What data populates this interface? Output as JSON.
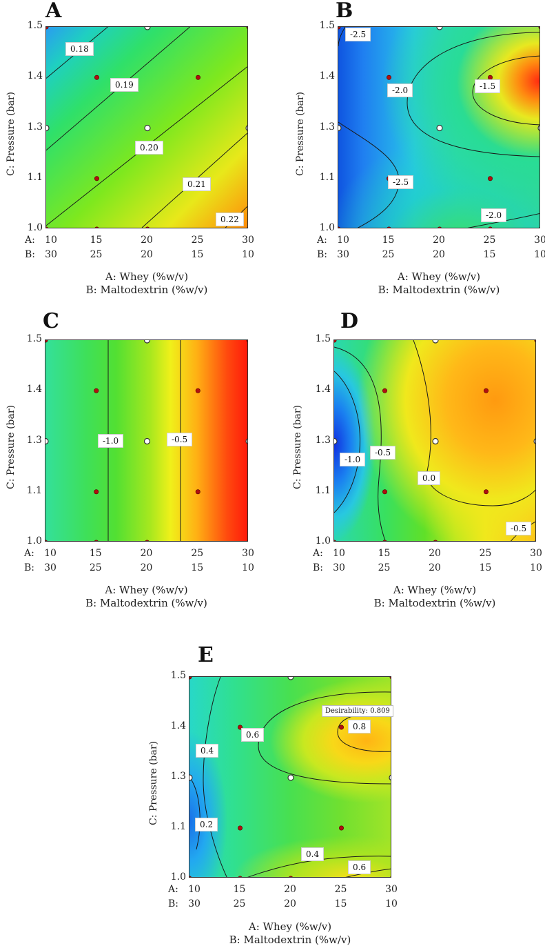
{
  "figure": {
    "axis_labels": {
      "y": "C: Pressure (bar)",
      "x1": "A: Whey (%w/v)",
      "x2": "B: Maltodextrin (%w/v)",
      "row_a_prefix": "A:",
      "row_b_prefix": "B:"
    },
    "y_ticks": [
      "1.5",
      "1.4",
      "1.3",
      "1.1",
      "1.0"
    ],
    "x_ticks_a": [
      "10",
      "15",
      "20",
      "25",
      "30"
    ],
    "x_ticks_b": [
      "30",
      "25",
      "20",
      "15",
      "10"
    ]
  },
  "chart_data": [
    {
      "panel": "A",
      "type": "heatmap",
      "x_a": [
        10,
        15,
        20,
        25,
        30
      ],
      "x_b": [
        30,
        25,
        20,
        15,
        10
      ],
      "ylim": [
        1.0,
        1.5
      ],
      "contour_levels": [
        "0.18",
        "0.19",
        "0.20",
        "0.21",
        "0.22"
      ],
      "design_points": [
        {
          "a": 10,
          "c": 1.5,
          "kind": "red"
        },
        {
          "a": 20,
          "c": 1.5,
          "kind": "white"
        },
        {
          "a": 30,
          "c": 1.5,
          "kind": "red"
        },
        {
          "a": 15,
          "c": 1.4,
          "kind": "red"
        },
        {
          "a": 25,
          "c": 1.4,
          "kind": "red"
        },
        {
          "a": 10,
          "c": 1.3,
          "kind": "white"
        },
        {
          "a": 20,
          "c": 1.3,
          "kind": "white"
        },
        {
          "a": 30,
          "c": 1.3,
          "kind": "white"
        },
        {
          "a": 15,
          "c": 1.1,
          "kind": "red"
        },
        {
          "a": 10,
          "c": 1.0,
          "kind": "red"
        },
        {
          "a": 15,
          "c": 1.0,
          "kind": "red"
        },
        {
          "a": 20,
          "c": 1.0,
          "kind": "red"
        },
        {
          "a": 30,
          "c": 1.0,
          "kind": "red"
        }
      ]
    },
    {
      "panel": "B",
      "type": "heatmap",
      "x_a": [
        10,
        15,
        20,
        25,
        30
      ],
      "x_b": [
        30,
        25,
        20,
        15,
        10
      ],
      "ylim": [
        1.0,
        1.5
      ],
      "contour_levels": [
        "-2.5",
        "-2.0",
        "-1.5",
        "-2.5",
        "-2.0"
      ],
      "design_points": [
        {
          "a": 10,
          "c": 1.5,
          "kind": "red"
        },
        {
          "a": 20,
          "c": 1.5,
          "kind": "white"
        },
        {
          "a": 30,
          "c": 1.5,
          "kind": "red"
        },
        {
          "a": 15,
          "c": 1.4,
          "kind": "red"
        },
        {
          "a": 25,
          "c": 1.4,
          "kind": "red"
        },
        {
          "a": 10,
          "c": 1.3,
          "kind": "white"
        },
        {
          "a": 20,
          "c": 1.3,
          "kind": "white"
        },
        {
          "a": 30,
          "c": 1.3,
          "kind": "white"
        },
        {
          "a": 15,
          "c": 1.1,
          "kind": "red"
        },
        {
          "a": 25,
          "c": 1.1,
          "kind": "red"
        },
        {
          "a": 10,
          "c": 1.0,
          "kind": "red"
        },
        {
          "a": 15,
          "c": 1.0,
          "kind": "red"
        },
        {
          "a": 20,
          "c": 1.0,
          "kind": "red"
        },
        {
          "a": 25,
          "c": 1.0,
          "kind": "red"
        },
        {
          "a": 30,
          "c": 1.0,
          "kind": "red"
        }
      ]
    },
    {
      "panel": "C",
      "type": "heatmap",
      "x_a": [
        10,
        15,
        20,
        25,
        30
      ],
      "x_b": [
        30,
        25,
        20,
        15,
        10
      ],
      "ylim": [
        1.0,
        1.5
      ],
      "contour_levels": [
        "-1.0",
        "-0.5"
      ],
      "design_points": [
        {
          "a": 10,
          "c": 1.5,
          "kind": "red"
        },
        {
          "a": 20,
          "c": 1.5,
          "kind": "white"
        },
        {
          "a": 30,
          "c": 1.5,
          "kind": "red"
        },
        {
          "a": 15,
          "c": 1.4,
          "kind": "red"
        },
        {
          "a": 25,
          "c": 1.4,
          "kind": "red"
        },
        {
          "a": 10,
          "c": 1.3,
          "kind": "white"
        },
        {
          "a": 20,
          "c": 1.3,
          "kind": "white"
        },
        {
          "a": 30,
          "c": 1.3,
          "kind": "white"
        },
        {
          "a": 15,
          "c": 1.1,
          "kind": "red"
        },
        {
          "a": 25,
          "c": 1.1,
          "kind": "red"
        },
        {
          "a": 10,
          "c": 1.0,
          "kind": "red"
        },
        {
          "a": 15,
          "c": 1.0,
          "kind": "red"
        },
        {
          "a": 20,
          "c": 1.0,
          "kind": "red"
        },
        {
          "a": 30,
          "c": 1.0,
          "kind": "red"
        }
      ]
    },
    {
      "panel": "D",
      "type": "heatmap",
      "x_a": [
        10,
        15,
        20,
        25,
        30
      ],
      "x_b": [
        30,
        25,
        20,
        15,
        10
      ],
      "ylim": [
        1.0,
        1.5
      ],
      "contour_levels": [
        "-1.0",
        "-0.5",
        "0.0",
        "-0.5"
      ],
      "design_points": [
        {
          "a": 10,
          "c": 1.5,
          "kind": "red"
        },
        {
          "a": 20,
          "c": 1.5,
          "kind": "white"
        },
        {
          "a": 30,
          "c": 1.5,
          "kind": "red"
        },
        {
          "a": 15,
          "c": 1.4,
          "kind": "red"
        },
        {
          "a": 25,
          "c": 1.4,
          "kind": "red"
        },
        {
          "a": 10,
          "c": 1.3,
          "kind": "white"
        },
        {
          "a": 20,
          "c": 1.3,
          "kind": "white"
        },
        {
          "a": 30,
          "c": 1.3,
          "kind": "white"
        },
        {
          "a": 15,
          "c": 1.1,
          "kind": "red"
        },
        {
          "a": 25,
          "c": 1.1,
          "kind": "red"
        },
        {
          "a": 10,
          "c": 1.0,
          "kind": "red"
        },
        {
          "a": 15,
          "c": 1.0,
          "kind": "red"
        },
        {
          "a": 20,
          "c": 1.0,
          "kind": "red"
        },
        {
          "a": 30,
          "c": 1.0,
          "kind": "red"
        }
      ]
    },
    {
      "panel": "E",
      "type": "heatmap",
      "x_a": [
        10,
        15,
        20,
        25,
        30
      ],
      "x_b": [
        30,
        25,
        20,
        15,
        10
      ],
      "ylim": [
        1.0,
        1.5
      ],
      "contour_levels": [
        "0.4",
        "0.6",
        "0.8",
        "0.2",
        "0.4",
        "0.6"
      ],
      "desirability_label": "Desirability: 0.809",
      "design_points": [
        {
          "a": 10,
          "c": 1.5,
          "kind": "red"
        },
        {
          "a": 20,
          "c": 1.5,
          "kind": "white"
        },
        {
          "a": 30,
          "c": 1.5,
          "kind": "red"
        },
        {
          "a": 15,
          "c": 1.4,
          "kind": "red"
        },
        {
          "a": 25,
          "c": 1.4,
          "kind": "red"
        },
        {
          "a": 10,
          "c": 1.3,
          "kind": "white"
        },
        {
          "a": 20,
          "c": 1.3,
          "kind": "white"
        },
        {
          "a": 30,
          "c": 1.3,
          "kind": "white"
        },
        {
          "a": 15,
          "c": 1.1,
          "kind": "red"
        },
        {
          "a": 25,
          "c": 1.1,
          "kind": "red"
        },
        {
          "a": 10,
          "c": 1.0,
          "kind": "red"
        },
        {
          "a": 15,
          "c": 1.0,
          "kind": "red"
        },
        {
          "a": 20,
          "c": 1.0,
          "kind": "red"
        },
        {
          "a": 30,
          "c": 1.0,
          "kind": "red"
        }
      ]
    }
  ],
  "colors": {
    "red_point": "#b01010",
    "white_point": "#ffffff",
    "contour_line": "#1a1a1a"
  }
}
